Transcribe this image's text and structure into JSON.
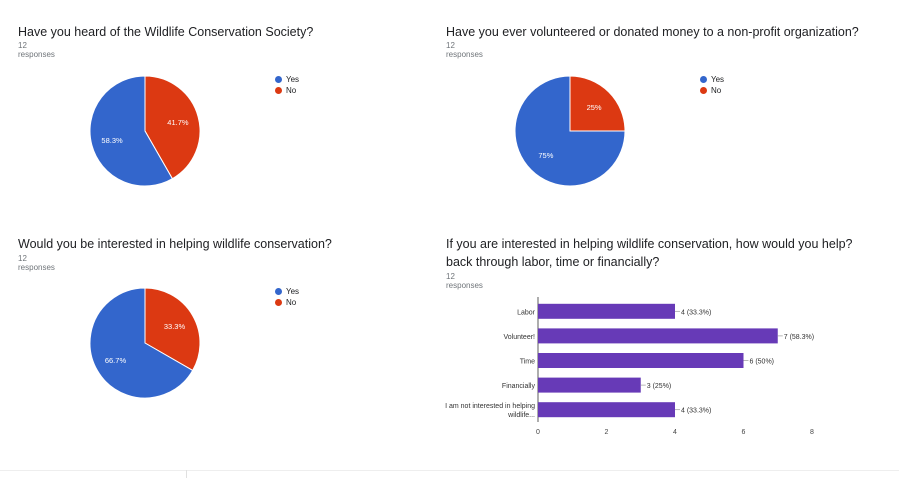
{
  "colors": {
    "yes": "#3366cc",
    "no": "#dc3912",
    "bar": "#673ab7"
  },
  "chart_data": [
    {
      "type": "pie",
      "title": "Have you heard of the Wildlife Conservation Society?",
      "subtitle": "12 responses",
      "legend": [
        "Yes",
        "No"
      ],
      "slices": [
        {
          "label": "Yes",
          "value": 58.3,
          "text": "58.3%",
          "color": "#3366cc"
        },
        {
          "label": "No",
          "value": 41.7,
          "text": "41.7%",
          "color": "#dc3912"
        }
      ]
    },
    {
      "type": "pie",
      "title": "Have you ever volunteered or donated money to a non-profit organization?",
      "subtitle": "12 responses",
      "legend": [
        "Yes",
        "No"
      ],
      "slices": [
        {
          "label": "Yes",
          "value": 75,
          "text": "75%",
          "color": "#3366cc"
        },
        {
          "label": "No",
          "value": 25,
          "text": "25%",
          "color": "#dc3912"
        }
      ]
    },
    {
      "type": "pie",
      "title": "Would you be interested in helping wildlife conservation?",
      "subtitle": "12 responses",
      "legend": [
        "Yes",
        "No"
      ],
      "slices": [
        {
          "label": "Yes",
          "value": 66.7,
          "text": "66.7%",
          "color": "#3366cc"
        },
        {
          "label": "No",
          "value": 33.3,
          "text": "33.3%",
          "color": "#dc3912"
        }
      ]
    },
    {
      "type": "bar",
      "orientation": "horizontal",
      "title": "If you are interested in helping wildlife conservation, how would you help?",
      "title_line2": "back through labor, time or financially?",
      "subtitle": "12 responses",
      "categories": [
        "Labor",
        "Volunteer!",
        "Time",
        "Financially",
        "I am not interested in helping wildlife..."
      ],
      "category_lines": [
        [
          "Labor"
        ],
        [
          "Volunteer!"
        ],
        [
          "Time"
        ],
        [
          "Financially"
        ],
        [
          "I am not interested in helping",
          "wildlife..."
        ]
      ],
      "values": [
        4,
        7,
        6,
        3,
        4
      ],
      "value_labels": [
        "4 (33.3%)",
        "7 (58.3%)",
        "6 (50%)",
        "3 (25%)",
        "4 (33.3%)"
      ],
      "xlim": [
        0,
        8
      ],
      "xticks": [
        "0",
        "2",
        "4",
        "6",
        "8"
      ],
      "color": "#673ab7"
    }
  ]
}
